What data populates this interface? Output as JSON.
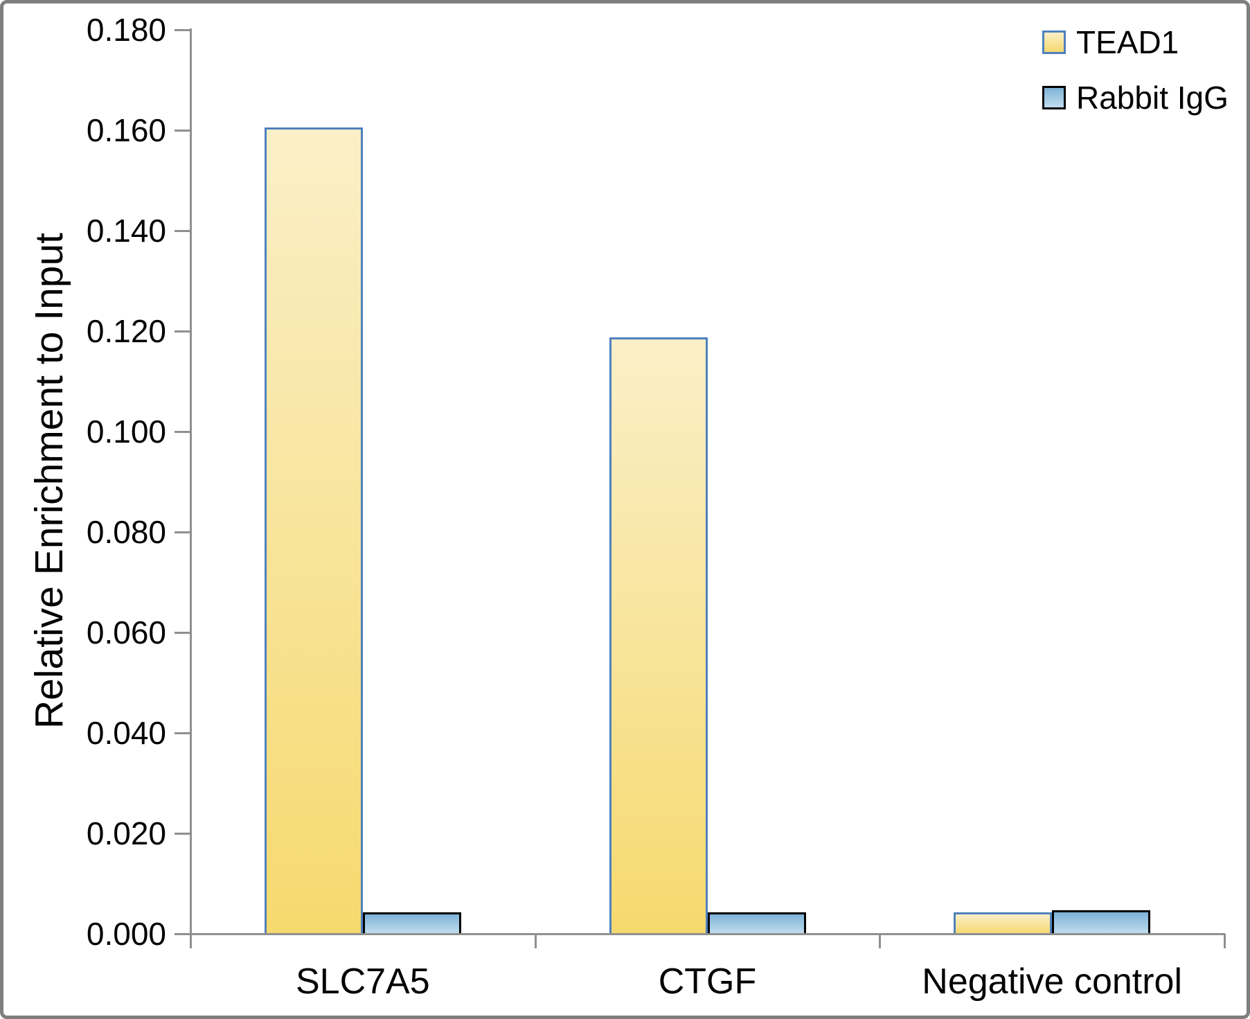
{
  "chart_data": {
    "type": "bar",
    "title": "",
    "xlabel": "",
    "ylabel": "Relative Enrichment to Input",
    "categories": [
      "SLC7A5",
      "CTGF",
      "Negative control"
    ],
    "series": [
      {
        "name": "TEAD1",
        "values": [
          0.1605,
          0.1188,
          0.0043
        ]
      },
      {
        "name": "Rabbit IgG",
        "values": [
          0.0043,
          0.0043,
          0.0047
        ]
      }
    ],
    "ylim": [
      0,
      0.18
    ],
    "ytick_step": 0.02,
    "ytick_labels": [
      "0.000",
      "0.020",
      "0.040",
      "0.060",
      "0.080",
      "0.100",
      "0.120",
      "0.140",
      "0.160",
      "0.180"
    ],
    "grid": false,
    "legend_position": "top-right"
  },
  "legend": {
    "items": [
      {
        "label": "TEAD1",
        "swatch": "tead1"
      },
      {
        "label": "Rabbit IgG",
        "swatch": "igg"
      }
    ]
  },
  "colors": {
    "tead1_fill_top": "#FAEFC8",
    "tead1_fill_bottom": "#F6D96E",
    "tead1_border": "#4F81BD",
    "igg_fill_top": "#7EB2D7",
    "igg_fill_bottom": "#C2DDEE",
    "igg_border": "#000000",
    "axis_gray": "#8F8F8F",
    "frame_gray": "#7F7F7F",
    "text": "#000000"
  }
}
